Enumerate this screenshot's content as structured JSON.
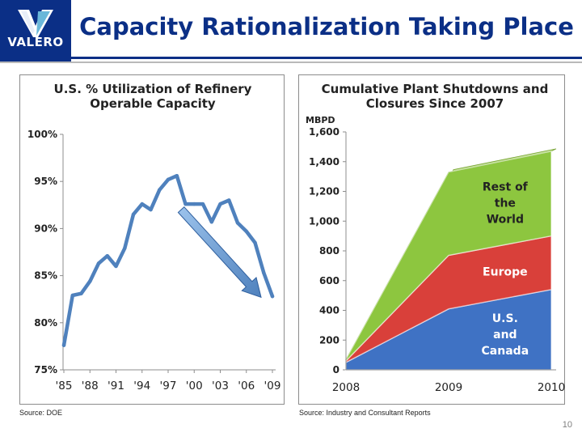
{
  "header": {
    "logo_text": "VALERO",
    "title": "Capacity Rationalization Taking Place"
  },
  "chart_data": [
    {
      "type": "line",
      "title_lines": [
        "U.S. % Utilization of Refinery",
        "Operable Capacity"
      ],
      "x": [
        1985,
        1986,
        1987,
        1988,
        1989,
        1990,
        1991,
        1992,
        1993,
        1994,
        1995,
        1996,
        1997,
        1998,
        1999,
        2000,
        2001,
        2002,
        2003,
        2004,
        2005,
        2006,
        2007,
        2008,
        2009
      ],
      "values": [
        77.6,
        82.9,
        83.1,
        84.4,
        86.3,
        87.1,
        86.0,
        87.9,
        91.5,
        92.6,
        92.0,
        94.1,
        95.2,
        95.6,
        92.6,
        92.6,
        92.6,
        90.7,
        92.6,
        93.0,
        90.6,
        89.7,
        88.5,
        85.3,
        82.8
      ],
      "x_tick_labels": [
        "'85",
        "'88",
        "'91",
        "'94",
        "'97",
        "'00",
        "'03",
        "'06",
        "'09"
      ],
      "x_tick_values": [
        1985,
        1988,
        1991,
        1994,
        1997,
        2000,
        2003,
        2006,
        2009
      ],
      "y_tick_labels": [
        "75%",
        "80%",
        "85%",
        "90%",
        "95%",
        "100%"
      ],
      "y_tick_values": [
        75,
        80,
        85,
        90,
        95,
        100
      ],
      "ylim": [
        75,
        100
      ],
      "grid": false,
      "line_color": "#4f81bd",
      "annotation": {
        "type": "trend-arrow",
        "from": [
          1998.5,
          92.0
        ],
        "to": [
          2007.7,
          82.7
        ],
        "color": "#4f81bd"
      }
    },
    {
      "type": "area",
      "stacked": true,
      "title_lines": [
        "Cumulative Plant Shutdowns and",
        "Closures Since 2007"
      ],
      "ylabel": "MBPD",
      "categories": [
        "2008",
        "2009",
        "2010"
      ],
      "series": [
        {
          "name_lines": [
            "U.S.",
            "and",
            "Canada"
          ],
          "values": [
            50,
            410,
            540
          ],
          "color": "#3f72c4",
          "label_color": "#ffffff"
        },
        {
          "name_lines": [
            "Europe"
          ],
          "values": [
            10,
            360,
            360
          ],
          "color": "#d9403a",
          "label_color": "#ffffff"
        },
        {
          "name_lines": [
            "Rest of",
            "the",
            "World"
          ],
          "values": [
            10,
            560,
            570
          ],
          "color": "#8dc63f",
          "label_color": "#222222"
        }
      ],
      "y_tick_labels": [
        "0",
        "200",
        "400",
        "600",
        "800",
        "1,000",
        "1,200",
        "1,400",
        "1,600"
      ],
      "y_tick_values": [
        0,
        200,
        400,
        600,
        800,
        1000,
        1200,
        1400,
        1600
      ],
      "ylim": [
        0,
        1600
      ],
      "grid": false
    }
  ],
  "sources": {
    "left": "Source: DOE",
    "right": "Source: Industry and Consultant Reports"
  },
  "page_number": "10"
}
